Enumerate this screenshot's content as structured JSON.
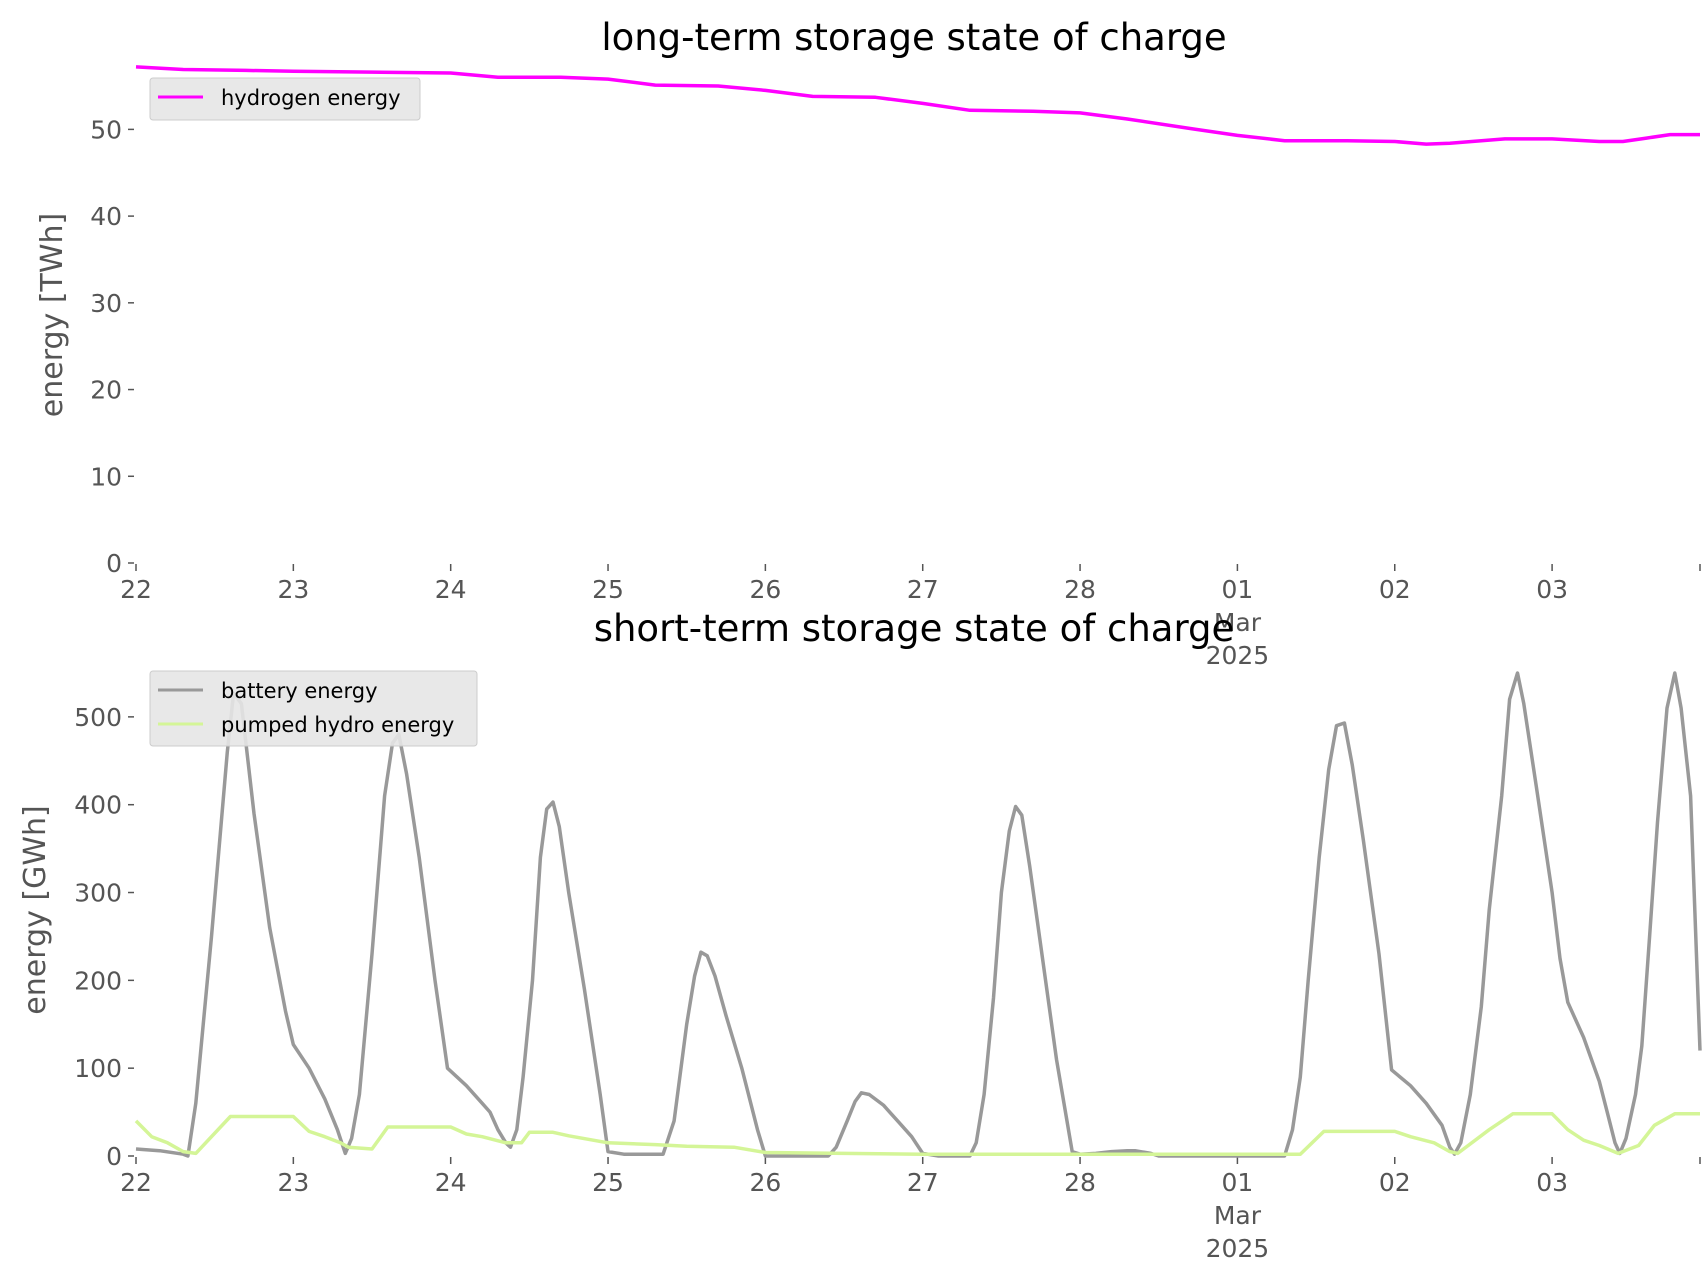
{
  "chart_data": [
    {
      "type": "line",
      "title": "long-term storage state of charge",
      "xlabel": "",
      "ylabel": "energy [TWh]",
      "x_tick_labels": [
        {
          "day": 0,
          "label": "22"
        },
        {
          "day": 1,
          "label": "23"
        },
        {
          "day": 2,
          "label": "24"
        },
        {
          "day": 3,
          "label": "25"
        },
        {
          "day": 4,
          "label": "26"
        },
        {
          "day": 5,
          "label": "27"
        },
        {
          "day": 6,
          "label": "28"
        },
        {
          "day": 7,
          "label": "01",
          "sub": [
            "Mar",
            "2025"
          ]
        },
        {
          "day": 8,
          "label": "02"
        },
        {
          "day": 9,
          "label": "03"
        }
      ],
      "xlim_days": [
        0,
        9.94
      ],
      "ylim": [
        0,
        58
      ],
      "yticks": [
        0,
        10,
        20,
        30,
        40,
        50
      ],
      "grid": false,
      "legend_position": "upper-left",
      "series": [
        {
          "name": "hydrogen energy",
          "color": "#ff00ff",
          "points": [
            [
              0,
              57.2
            ],
            [
              0.3,
              56.9
            ],
            [
              0.7,
              56.8
            ],
            [
              1,
              56.7
            ],
            [
              1.5,
              56.6
            ],
            [
              2,
              56.5
            ],
            [
              2.3,
              56
            ],
            [
              2.7,
              56
            ],
            [
              3,
              55.8
            ],
            [
              3.3,
              55.1
            ],
            [
              3.7,
              55
            ],
            [
              4,
              54.5
            ],
            [
              4.3,
              53.8
            ],
            [
              4.7,
              53.7
            ],
            [
              5,
              53
            ],
            [
              5.3,
              52.2
            ],
            [
              5.7,
              52.1
            ],
            [
              6,
              51.9
            ],
            [
              6.3,
              51.2
            ],
            [
              6.7,
              50.1
            ],
            [
              7,
              49.3
            ],
            [
              7.3,
              48.7
            ],
            [
              7.7,
              48.7
            ],
            [
              8,
              48.6
            ],
            [
              8.2,
              48.3
            ],
            [
              8.35,
              48.4
            ],
            [
              8.7,
              48.9
            ],
            [
              9,
              48.9
            ],
            [
              9.3,
              48.6
            ],
            [
              9.45,
              48.6
            ],
            [
              9.6,
              49
            ],
            [
              9.75,
              49.4
            ],
            [
              9.94,
              49.4
            ]
          ]
        }
      ]
    },
    {
      "type": "line",
      "title": "short-term storage state of charge",
      "xlabel": "",
      "ylabel": "energy [GWh]",
      "x_tick_labels": [
        {
          "day": 0,
          "label": "22"
        },
        {
          "day": 1,
          "label": "23"
        },
        {
          "day": 2,
          "label": "24"
        },
        {
          "day": 3,
          "label": "25"
        },
        {
          "day": 4,
          "label": "26"
        },
        {
          "day": 5,
          "label": "27"
        },
        {
          "day": 6,
          "label": "28"
        },
        {
          "day": 7,
          "label": "01",
          "sub": [
            "Mar",
            "2025"
          ]
        },
        {
          "day": 8,
          "label": "02"
        },
        {
          "day": 9,
          "label": "03"
        }
      ],
      "xlim_days": [
        0,
        9.94
      ],
      "ylim": [
        0,
        575
      ],
      "yticks": [
        0,
        100,
        200,
        300,
        400,
        500
      ],
      "grid": false,
      "legend_position": "upper-left",
      "series": [
        {
          "name": "battery energy",
          "color": "#999999",
          "points": [
            [
              0,
              8
            ],
            [
              0.15,
              6
            ],
            [
              0.3,
              2
            ],
            [
              0.33,
              0
            ],
            [
              0.38,
              60
            ],
            [
              0.48,
              250
            ],
            [
              0.58,
              460
            ],
            [
              0.62,
              527
            ],
            [
              0.67,
              515
            ],
            [
              0.75,
              390
            ],
            [
              0.85,
              260
            ],
            [
              0.95,
              165
            ],
            [
              1,
              127
            ],
            [
              1.1,
              100
            ],
            [
              1.2,
              65
            ],
            [
              1.28,
              30
            ],
            [
              1.33,
              3
            ],
            [
              1.37,
              20
            ],
            [
              1.42,
              70
            ],
            [
              1.5,
              230
            ],
            [
              1.58,
              410
            ],
            [
              1.63,
              470
            ],
            [
              1.67,
              480
            ],
            [
              1.72,
              435
            ],
            [
              1.8,
              340
            ],
            [
              1.9,
              200
            ],
            [
              1.98,
              100
            ],
            [
              2.1,
              80
            ],
            [
              2.2,
              60
            ],
            [
              2.25,
              50
            ],
            [
              2.3,
              30
            ],
            [
              2.35,
              15
            ],
            [
              2.38,
              10
            ],
            [
              2.42,
              30
            ],
            [
              2.46,
              90
            ],
            [
              2.52,
              200
            ],
            [
              2.57,
              340
            ],
            [
              2.61,
              395
            ],
            [
              2.65,
              403
            ],
            [
              2.69,
              375
            ],
            [
              2.75,
              300
            ],
            [
              2.85,
              190
            ],
            [
              2.95,
              70
            ],
            [
              3,
              5
            ],
            [
              3.1,
              2
            ],
            [
              3.3,
              2
            ],
            [
              3.35,
              2
            ],
            [
              3.42,
              40
            ],
            [
              3.5,
              150
            ],
            [
              3.55,
              205
            ],
            [
              3.59,
              232
            ],
            [
              3.63,
              228
            ],
            [
              3.68,
              205
            ],
            [
              3.75,
              160
            ],
            [
              3.85,
              100
            ],
            [
              3.95,
              30
            ],
            [
              4,
              0
            ],
            [
              4.1,
              0
            ],
            [
              4.4,
              0
            ],
            [
              4.45,
              10
            ],
            [
              4.52,
              40
            ],
            [
              4.57,
              62
            ],
            [
              4.61,
              72
            ],
            [
              4.66,
              70
            ],
            [
              4.75,
              58
            ],
            [
              4.85,
              38
            ],
            [
              4.93,
              22
            ],
            [
              5,
              3
            ],
            [
              5.1,
              0
            ],
            [
              5.3,
              0
            ],
            [
              5.34,
              15
            ],
            [
              5.39,
              70
            ],
            [
              5.45,
              180
            ],
            [
              5.5,
              300
            ],
            [
              5.55,
              370
            ],
            [
              5.59,
              398
            ],
            [
              5.63,
              388
            ],
            [
              5.68,
              330
            ],
            [
              5.75,
              240
            ],
            [
              5.85,
              110
            ],
            [
              5.95,
              5
            ],
            [
              6,
              2
            ],
            [
              6.1,
              3
            ],
            [
              6.2,
              5
            ],
            [
              6.3,
              6
            ],
            [
              6.35,
              6
            ],
            [
              6.45,
              3
            ],
            [
              6.5,
              0
            ],
            [
              7,
              0
            ],
            [
              7.3,
              0
            ],
            [
              7.35,
              30
            ],
            [
              7.4,
              90
            ],
            [
              7.45,
              200
            ],
            [
              7.52,
              340
            ],
            [
              7.58,
              440
            ],
            [
              7.63,
              490
            ],
            [
              7.68,
              493
            ],
            [
              7.73,
              445
            ],
            [
              7.8,
              360
            ],
            [
              7.9,
              230
            ],
            [
              7.98,
              98
            ],
            [
              8.1,
              80
            ],
            [
              8.2,
              60
            ],
            [
              8.3,
              35
            ],
            [
              8.35,
              10
            ],
            [
              8.38,
              2
            ],
            [
              8.42,
              15
            ],
            [
              8.48,
              70
            ],
            [
              8.55,
              170
            ],
            [
              8.6,
              280
            ],
            [
              8.68,
              410
            ],
            [
              8.73,
              520
            ],
            [
              8.78,
              550
            ],
            [
              8.82,
              515
            ],
            [
              8.9,
              420
            ],
            [
              9,
              300
            ],
            [
              9.05,
              225
            ],
            [
              9.1,
              175
            ],
            [
              9.15,
              155
            ],
            [
              9.2,
              135
            ],
            [
              9.3,
              85
            ],
            [
              9.35,
              50
            ],
            [
              9.4,
              15
            ],
            [
              9.43,
              3
            ],
            [
              9.47,
              20
            ],
            [
              9.53,
              70
            ],
            [
              9.57,
              125
            ],
            [
              9.62,
              250
            ],
            [
              9.67,
              380
            ],
            [
              9.73,
              510
            ],
            [
              9.78,
              550
            ],
            [
              9.82,
              510
            ],
            [
              9.88,
              410
            ],
            [
              9.94,
              120
            ]
          ]
        },
        {
          "name": "pumped hydro energy",
          "color": "#d4f597",
          "points": [
            [
              0,
              40
            ],
            [
              0.1,
              22
            ],
            [
              0.2,
              15
            ],
            [
              0.3,
              5
            ],
            [
              0.38,
              3
            ],
            [
              0.6,
              45
            ],
            [
              1,
              45
            ],
            [
              1.1,
              28
            ],
            [
              1.2,
              22
            ],
            [
              1.3,
              15
            ],
            [
              1.35,
              10
            ],
            [
              1.5,
              8
            ],
            [
              1.6,
              33
            ],
            [
              2,
              33
            ],
            [
              2.1,
              25
            ],
            [
              2.2,
              22
            ],
            [
              2.35,
              15
            ],
            [
              2.45,
              15
            ],
            [
              2.5,
              27
            ],
            [
              2.65,
              27
            ],
            [
              2.75,
              23
            ],
            [
              3,
              15
            ],
            [
              3.3,
              13
            ],
            [
              3.5,
              11
            ],
            [
              3.8,
              10
            ],
            [
              4,
              4
            ],
            [
              4.5,
              3
            ],
            [
              5,
              2
            ],
            [
              5.5,
              2
            ],
            [
              6,
              2
            ],
            [
              6.5,
              2
            ],
            [
              7,
              2
            ],
            [
              7.4,
              2
            ],
            [
              7.55,
              28
            ],
            [
              8,
              28
            ],
            [
              8.1,
              22
            ],
            [
              8.25,
              15
            ],
            [
              8.35,
              5
            ],
            [
              8.4,
              3
            ],
            [
              8.6,
              30
            ],
            [
              8.75,
              48
            ],
            [
              9,
              48
            ],
            [
              9.1,
              30
            ],
            [
              9.2,
              18
            ],
            [
              9.3,
              12
            ],
            [
              9.42,
              3
            ],
            [
              9.55,
              12
            ],
            [
              9.65,
              35
            ],
            [
              9.78,
              48
            ],
            [
              9.94,
              48
            ]
          ]
        }
      ]
    }
  ]
}
